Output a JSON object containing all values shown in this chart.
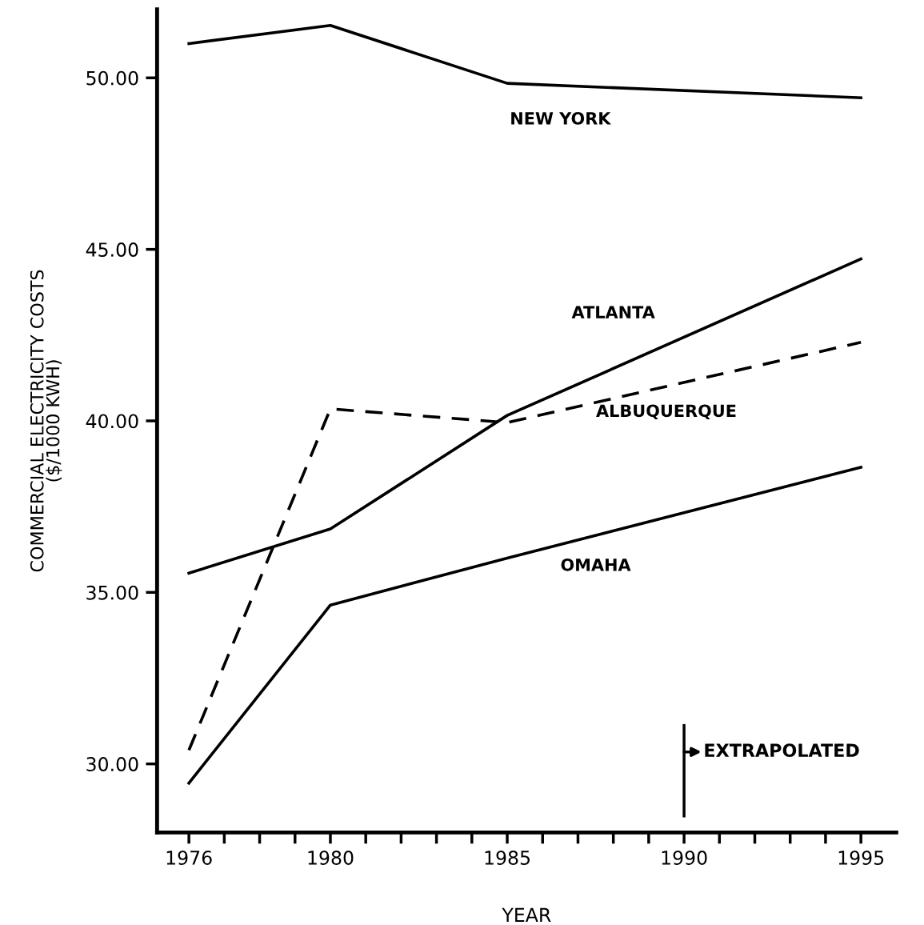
{
  "chart_data": {
    "type": "line",
    "xlabel": "YEAR",
    "ylabel": "COMMERCIAL ELECTRICITY COSTS\n($/1000 KWH)",
    "x": [
      1976,
      1980,
      1985,
      1995
    ],
    "series": [
      {
        "name": "NEW YORK",
        "color": "#000000",
        "line_style": "solid",
        "values": [
          51.0,
          51.53,
          49.84,
          49.42
        ]
      },
      {
        "name": "ATLANTA",
        "color": "#000000",
        "line_style": "solid",
        "values": [
          35.56,
          36.85,
          40.16,
          44.72
        ]
      },
      {
        "name": "ALBUQUERQUE",
        "color": "#000000",
        "line_style": "dashed",
        "values": [
          30.4,
          40.35,
          39.95,
          42.29
        ]
      },
      {
        "name": "OMAHA",
        "color": "#000000",
        "line_style": "solid",
        "values": [
          29.44,
          34.63,
          36.0,
          38.65
        ]
      }
    ],
    "xlim": [
      1975.1,
      1996
    ],
    "xticks": [
      1976,
      {
        "value": 1977,
        "label": null
      },
      {
        "value": 1978,
        "label": null
      },
      {
        "value": 1979,
        "label": null
      },
      1980,
      {
        "value": 1981,
        "label": null
      },
      {
        "value": 1982,
        "label": null
      },
      {
        "value": 1983,
        "label": null
      },
      {
        "value": 1984,
        "label": null
      },
      1985,
      {
        "value": 1986,
        "label": null
      },
      {
        "value": 1987,
        "label": null
      },
      {
        "value": 1988,
        "label": null
      },
      {
        "value": 1989,
        "label": null
      },
      1990,
      {
        "value": 1991,
        "label": null
      },
      {
        "value": 1992,
        "label": null
      },
      {
        "value": 1993,
        "label": null
      },
      {
        "value": 1994,
        "label": null
      },
      1995
    ],
    "ylim": [
      28.0,
      52.0
    ],
    "yticks": [
      {
        "value": 30,
        "label": "30.00"
      },
      {
        "value": 35,
        "label": "35.00"
      },
      {
        "value": 40,
        "label": "40.00"
      },
      {
        "value": 45,
        "label": "45.00"
      },
      {
        "value": 50,
        "label": "50.00"
      }
    ],
    "ref_lines": [
      {
        "axis": "x",
        "value": 1990,
        "label": "EXTRAPOLATED",
        "color": "#000000",
        "line_style": "solid"
      }
    ],
    "grid": false,
    "legend": false,
    "marker": "none"
  }
}
